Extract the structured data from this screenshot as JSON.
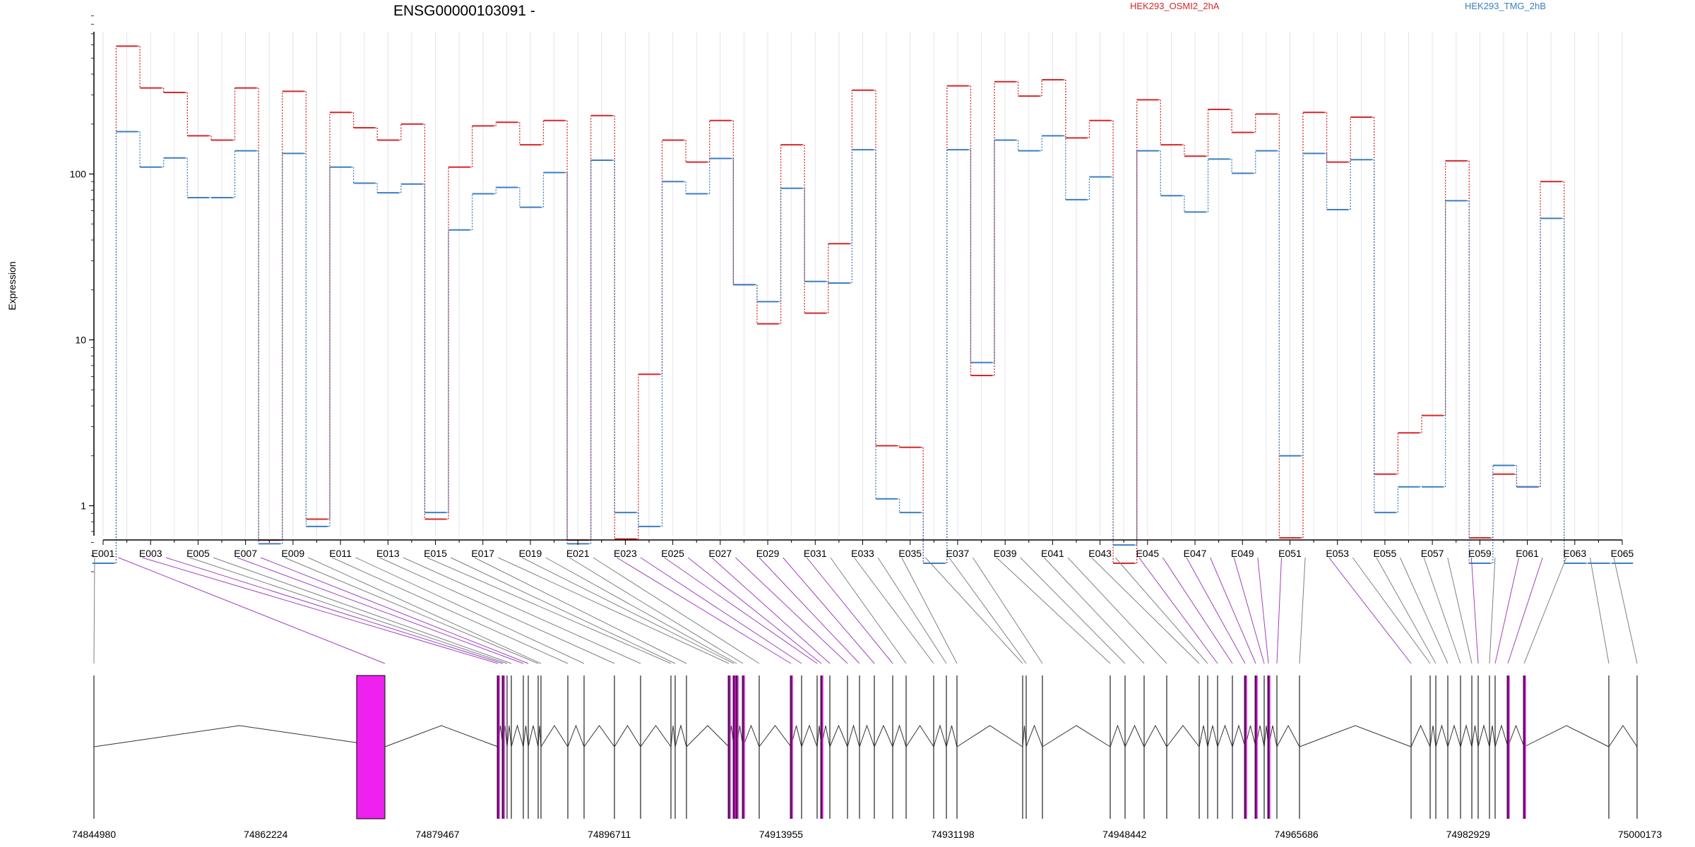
{
  "colors": {
    "series_a": "#d62728",
    "series_b": "#3b7ec2",
    "highlight": "#ee22ee",
    "link_highlight": "#a040c0",
    "link": "#808080"
  },
  "chart_data": {
    "type": "line",
    "title": "ENSG00000103091 -",
    "ylabel": "Expression",
    "xlabel": "",
    "y_scale": "log",
    "ylim": [
      0.4,
      1000
    ],
    "y_ticks": [
      {
        "label": "1",
        "value": 1
      },
      {
        "label": "10",
        "value": 10
      },
      {
        "label": "100",
        "value": 100
      }
    ],
    "grid": "vertical",
    "legend_placement": "top-right",
    "exons": [
      "E001",
      "E002",
      "E003",
      "E004",
      "E005",
      "E006",
      "E007",
      "E008",
      "E009",
      "E010",
      "E011",
      "E012",
      "E013",
      "E014",
      "E015",
      "E016",
      "E017",
      "E018",
      "E019",
      "E020",
      "E021",
      "E022",
      "E023",
      "E024",
      "E025",
      "E026",
      "E027",
      "E028",
      "E029",
      "E030",
      "E031",
      "E032",
      "E033",
      "E034",
      "E035",
      "E036",
      "E037",
      "E038",
      "E039",
      "E040",
      "E041",
      "E042",
      "E043",
      "E044",
      "E045",
      "E046",
      "E047",
      "E048",
      "E049",
      "E050",
      "E051",
      "E052",
      "E053",
      "E054",
      "E055",
      "E056",
      "E057",
      "E058",
      "E059",
      "E060",
      "E061",
      "E062",
      "E063",
      "E064",
      "E065"
    ],
    "exon_tick_labels": [
      "E001",
      "E003",
      "E005",
      "E007",
      "E009",
      "E011",
      "E013",
      "E015",
      "E017",
      "E019",
      "E021",
      "E023",
      "E025",
      "E027",
      "E029",
      "E031",
      "E033",
      "E035",
      "E037",
      "E039",
      "E041",
      "E043",
      "E045",
      "E047",
      "E049",
      "E051",
      "E053",
      "E055",
      "E057",
      "E059",
      "E061",
      "E063",
      "E065"
    ],
    "series": [
      {
        "name": "HEK293_OSMI2_2hA",
        "values": [
          0.45,
          590,
          330,
          310,
          170,
          160,
          330,
          0.62,
          315,
          0.83,
          235,
          190,
          160,
          200,
          0.83,
          110,
          195,
          205,
          150,
          210,
          0.62,
          225,
          0.63,
          6.2,
          160,
          118,
          210,
          21.5,
          12.5,
          150,
          14.5,
          38,
          320,
          2.3,
          2.25,
          0.45,
          340,
          6.1,
          360,
          295,
          370,
          165,
          210,
          0.45,
          280,
          150,
          128,
          245,
          178,
          230,
          0.64,
          235,
          118,
          220,
          1.55,
          2.75,
          3.5,
          120,
          0.64,
          1.55,
          1.3,
          90,
          0.45,
          0.45,
          0.45
        ]
      },
      {
        "name": "HEK293_TMG_2hB",
        "values": [
          0.45,
          180,
          110,
          125,
          72,
          72,
          138,
          0.59,
          133,
          0.75,
          110,
          88,
          77,
          87,
          0.91,
          46,
          76,
          83,
          63,
          102,
          0.59,
          121,
          0.91,
          0.75,
          90,
          76,
          124,
          21.5,
          17,
          82,
          22.5,
          22,
          140,
          1.1,
          0.91,
          0.45,
          140,
          7.3,
          160,
          138,
          170,
          70,
          96,
          0.58,
          138,
          74,
          59,
          123,
          101,
          138,
          2.0,
          133,
          61,
          122,
          0.91,
          1.3,
          1.3,
          69,
          0.45,
          1.75,
          1.3,
          54,
          0.45,
          0.45,
          0.45
        ]
      }
    ],
    "genomic_axis_labels": [
      "74844980",
      "74862224",
      "74879467",
      "74896711",
      "74913955",
      "74931198",
      "74948442",
      "74965686",
      "74982929",
      "75000173"
    ],
    "genomic_range": [
      74844980,
      75000173
    ]
  }
}
